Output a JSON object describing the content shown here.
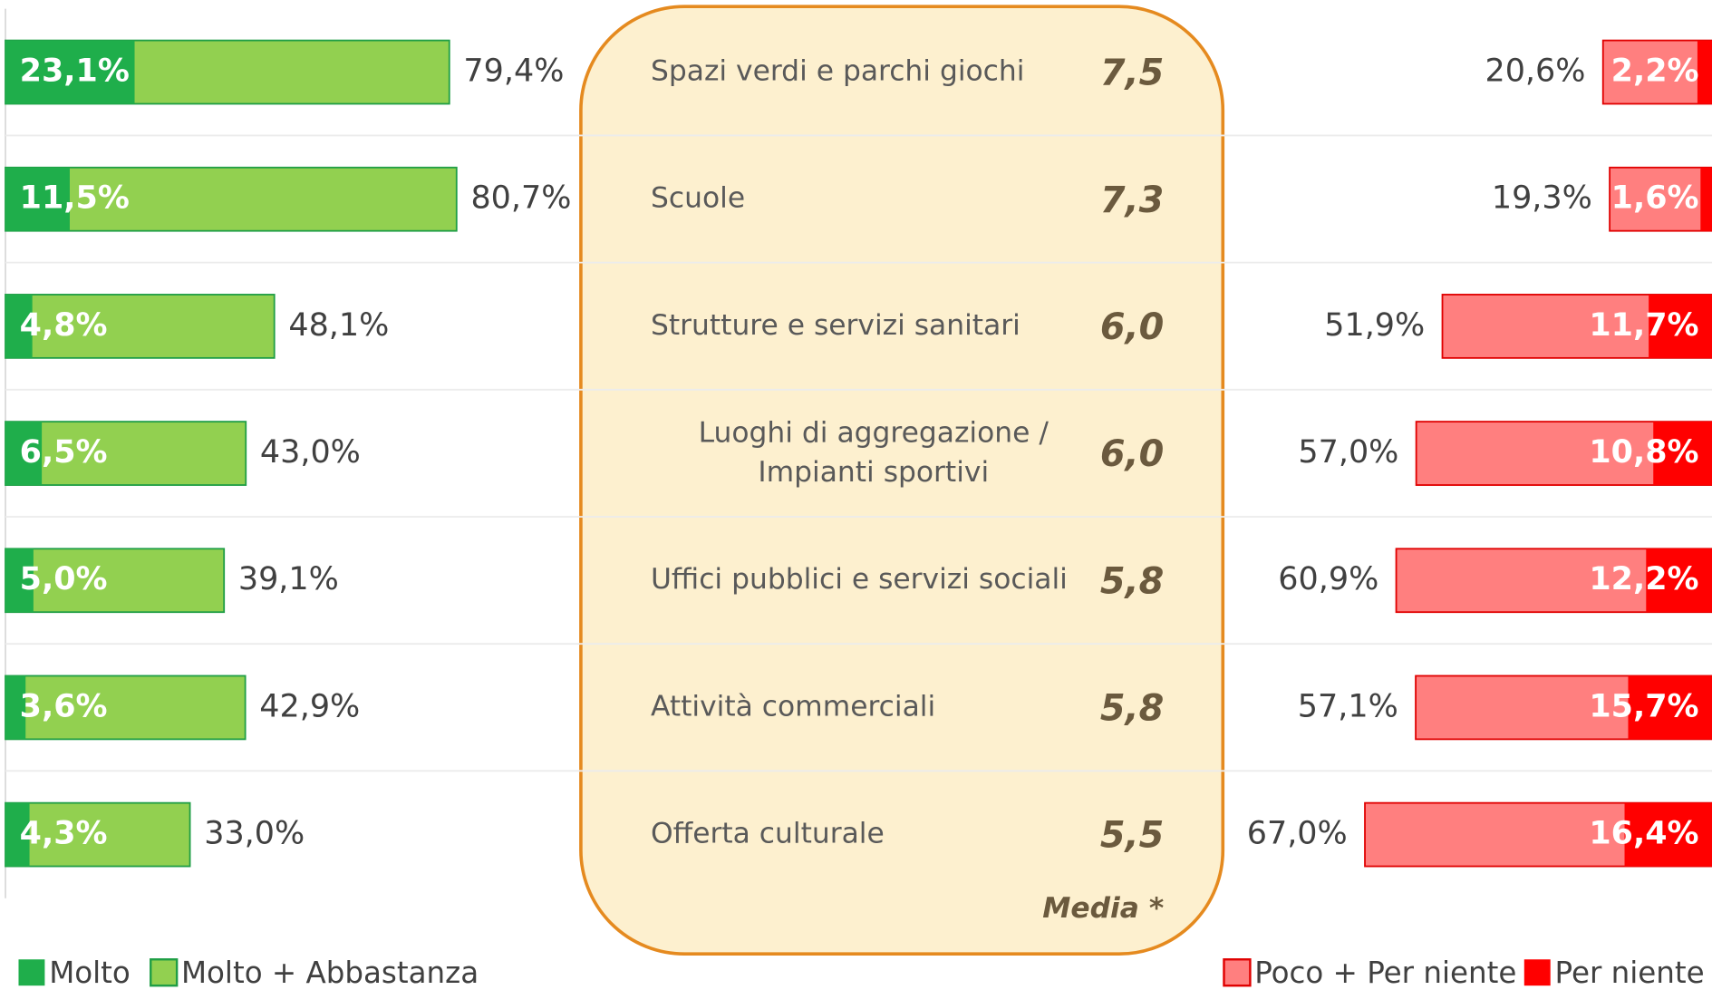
{
  "chart_data": {
    "type": "diverging_bar",
    "categories": [
      "Spazi verdi e parchi giochi",
      "Scuole",
      "Strutture e servizi sanitari",
      "Luoghi di aggregazione / Impianti sportivi",
      "Uffici pubblici e servizi sociali",
      "Attività commerciali",
      "Offerta culturale"
    ],
    "series": [
      {
        "name": "Molto",
        "color": "#1fae4b",
        "side": "left",
        "values": [
          23.1,
          11.5,
          4.8,
          6.5,
          5.0,
          3.6,
          4.3
        ],
        "value_labels": [
          "23,1%",
          "11,5%",
          "4,8%",
          "6,5%",
          "5,0%",
          "3,6%",
          "4,3%"
        ]
      },
      {
        "name": "Molto + Abbastanza",
        "color": "#92d050",
        "side": "left",
        "values": [
          79.4,
          80.7,
          48.1,
          43.0,
          39.1,
          42.9,
          33.0
        ],
        "value_labels": [
          "79,4%",
          "80,7%",
          "48,1%",
          "43,0%",
          "39,1%",
          "42,9%",
          "33,0%"
        ]
      },
      {
        "name": "Poco + Per niente",
        "color": "#ff7f7f",
        "side": "right",
        "values": [
          20.6,
          19.3,
          51.9,
          57.0,
          60.9,
          57.1,
          67.0
        ],
        "value_labels": [
          "20,6%",
          "19,3%",
          "51,9%",
          "57,0%",
          "60,9%",
          "57,1%",
          "67,0%"
        ]
      },
      {
        "name": "Per niente",
        "color": "#ff0000",
        "side": "right",
        "values": [
          2.2,
          1.6,
          11.7,
          10.8,
          12.2,
          15.7,
          16.4
        ],
        "value_labels": [
          "2,2%",
          "1,6%",
          "11,7%",
          "10,8%",
          "12,2%",
          "15,7%",
          "16,4%"
        ]
      }
    ],
    "media": {
      "label": "Media *",
      "values": [
        7.5,
        7.3,
        6.0,
        6.0,
        5.8,
        5.8,
        5.5
      ],
      "value_labels": [
        "7,5",
        "7,3",
        "6,0",
        "6,0",
        "5,8",
        "5,8",
        "5,5"
      ]
    }
  }
}
